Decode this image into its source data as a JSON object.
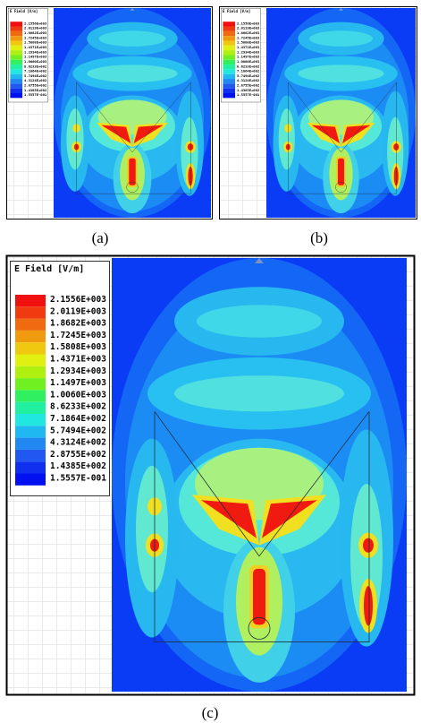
{
  "legend": {
    "title": "E Field [V/m]",
    "labels": [
      "2.1556E+003",
      "2.0119E+003",
      "1.8682E+003",
      "1.7245E+003",
      "1.5808E+003",
      "1.4371E+003",
      "1.2934E+003",
      "1.1497E+003",
      "1.0060E+003",
      "8.6233E+002",
      "7.1864E+002",
      "5.7494E+002",
      "4.3124E+002",
      "2.8755E+002",
      "1.4385E+002",
      "1.5557E-001"
    ]
  },
  "panels": [
    {
      "caption": "(a)"
    },
    {
      "caption": "(b)"
    },
    {
      "caption": "(c)"
    }
  ]
}
